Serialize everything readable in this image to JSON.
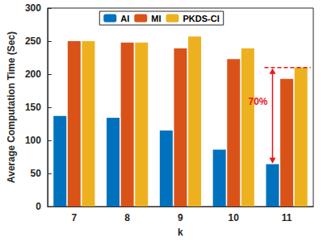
{
  "chart_data": {
    "type": "bar",
    "categories": [
      "7",
      "8",
      "9",
      "10",
      "11"
    ],
    "series": [
      {
        "name": "AI",
        "color": "#0072BD",
        "values": [
          137,
          134,
          115,
          86,
          64
        ]
      },
      {
        "name": "MI",
        "color": "#D95319",
        "values": [
          250,
          248,
          239,
          223,
          193
        ]
      },
      {
        "name": "PKDS-CI",
        "color": "#EDB120",
        "values": [
          250,
          248,
          257,
          239,
          210
        ]
      }
    ],
    "xlabel": "k",
    "ylabel": "Average Computation Time (Sec)",
    "ylim": [
      0,
      300
    ],
    "yticks": [
      0,
      50,
      100,
      150,
      200,
      250,
      300
    ],
    "grid": false,
    "legend": "top",
    "annotations": [
      {
        "text": "70%",
        "category": "11",
        "from": 210,
        "to": 64,
        "color": "#E8161E"
      }
    ]
  }
}
